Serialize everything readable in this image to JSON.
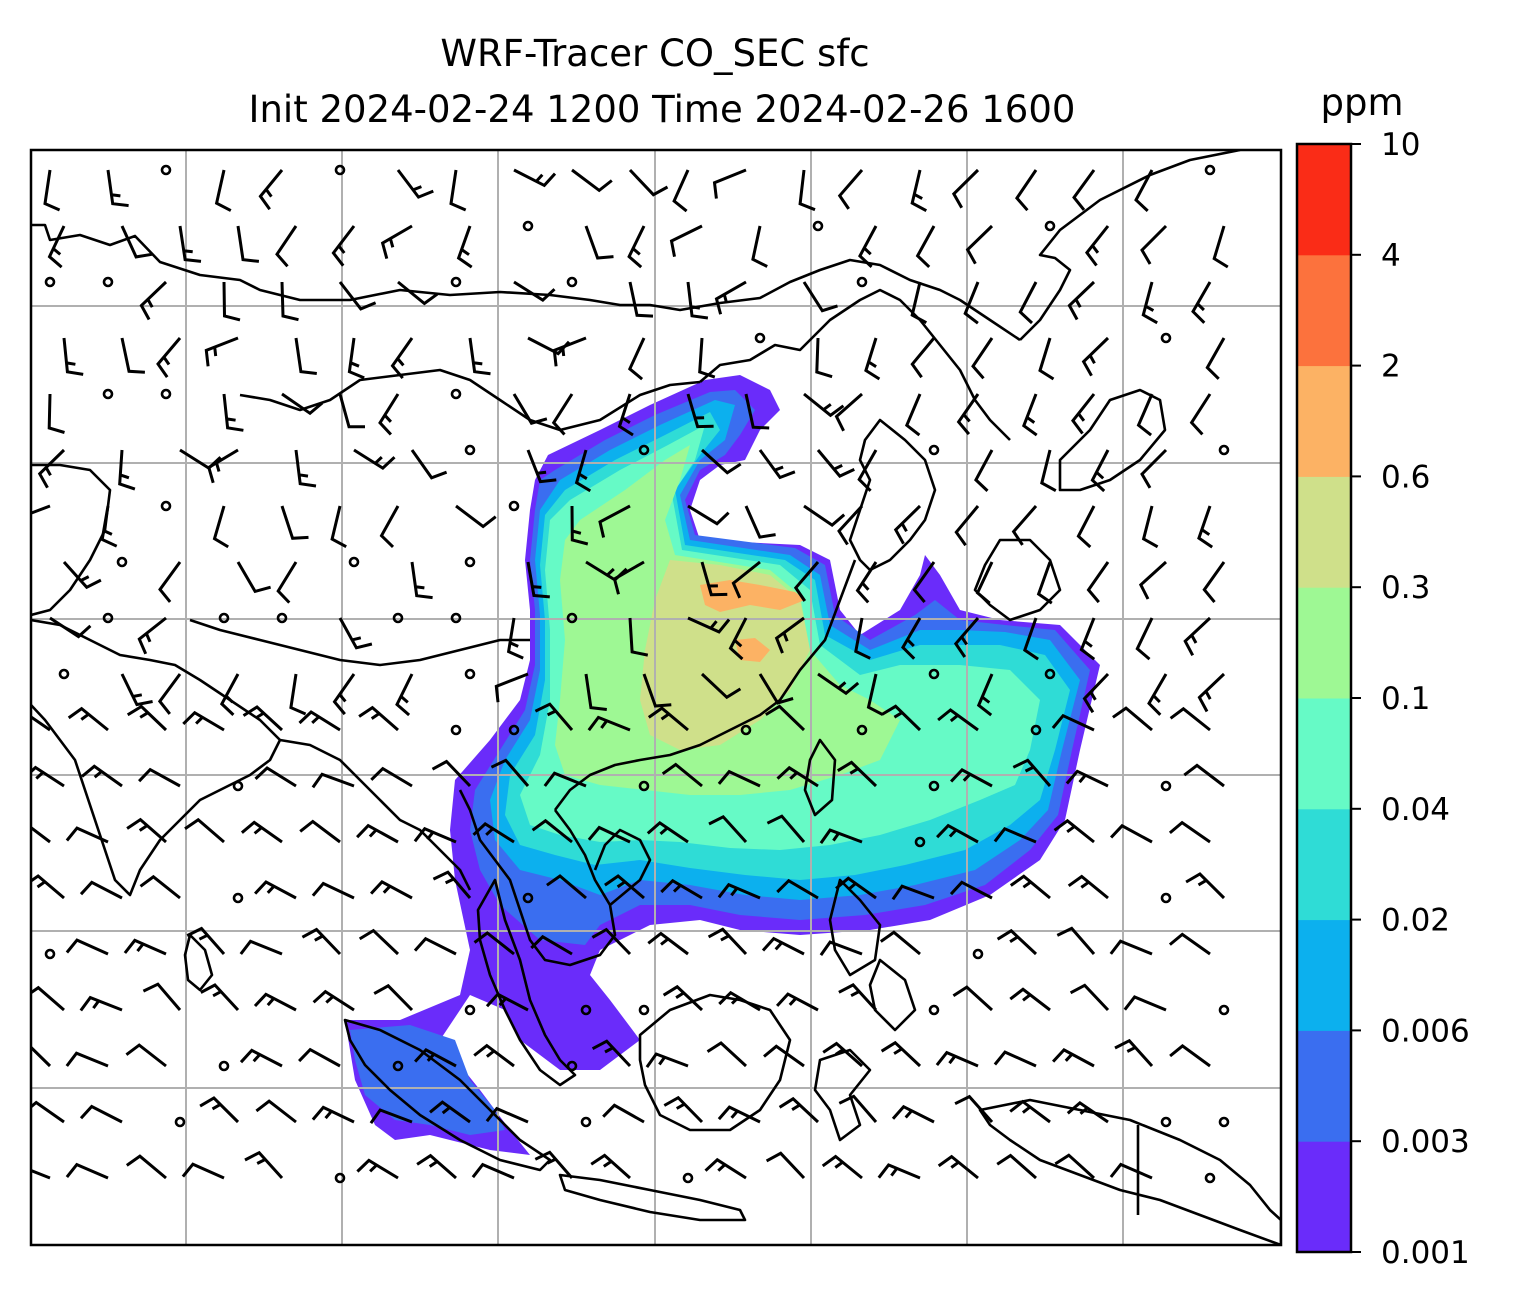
{
  "title": {
    "line1": "WRF-Tracer CO_SEC sfc",
    "line2": "Init 2024-02-24 1200 Time 2024-02-26 1600"
  },
  "colorbar": {
    "units": "ppm",
    "levels": [
      "0.001",
      "0.003",
      "0.006",
      "0.02",
      "0.04",
      "0.1",
      "0.3",
      "0.6",
      "2",
      "4",
      "10"
    ],
    "colors": [
      "#6a2cfa",
      "#3a6ef0",
      "#0cb0ee",
      "#2fdcd6",
      "#66fac6",
      "#9ef894",
      "#cfe08a",
      "#fcb264",
      "#fc723d",
      "#fa2c17"
    ]
  },
  "map": {
    "gridlines": true,
    "field": "CO_SEC tracer concentration",
    "overlay": "wind barbs"
  }
}
